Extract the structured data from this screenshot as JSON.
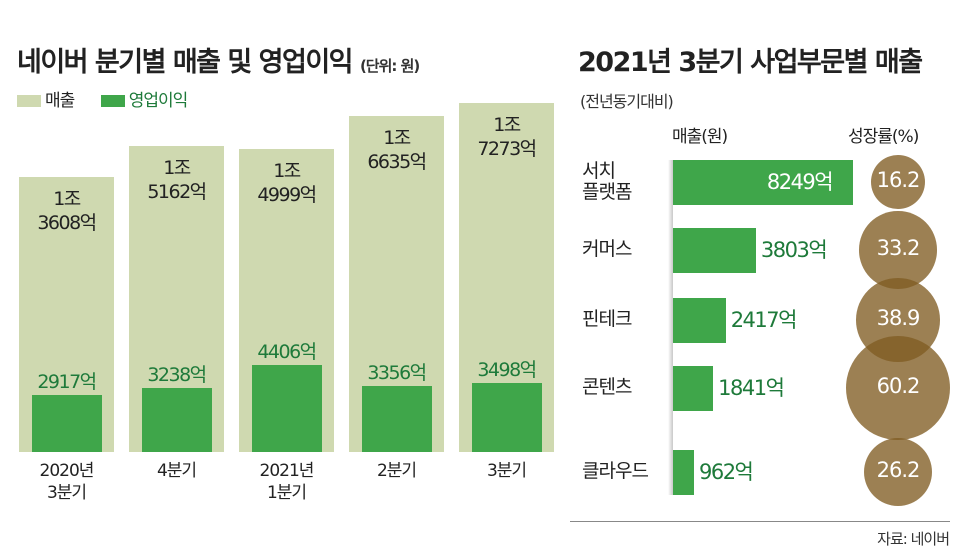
{
  "left": {
    "title": "네이버 분기별 매출 및 영업이익",
    "unit": "(단위: 원)",
    "legend": {
      "sales": "매출",
      "operating": "영업이익"
    }
  },
  "right": {
    "title": "2021년 3분기 사업부문별 매출",
    "subtitle": "(전년동기대비)",
    "col_sales": "매출(원)",
    "col_growth": "성장률(%)"
  },
  "source": "자료: 네이버",
  "colors": {
    "sales": "#cfd9b0",
    "operating": "#3fa64a",
    "growth": "#8c6a32"
  },
  "chart_data": [
    {
      "type": "bar",
      "title": "네이버 분기별 매출 및 영업이익",
      "unit": "억원",
      "categories": [
        "2020년\n3분기",
        "4분기",
        "2021년\n1분기",
        "2분기",
        "3분기"
      ],
      "series": [
        {
          "name": "매출",
          "values": [
            13608,
            15162,
            14999,
            16635,
            17273
          ],
          "labels": [
            "1조\n3608억",
            "1조\n5162억",
            "1조\n4999억",
            "1조\n6635억",
            "1조\n7273억"
          ]
        },
        {
          "name": "영업이익",
          "values": [
            2917,
            3238,
            4406,
            3356,
            3498
          ],
          "labels": [
            "2917억",
            "3238억",
            "4406억",
            "3356억",
            "3498억"
          ]
        }
      ]
    },
    {
      "type": "bar",
      "orientation": "horizontal",
      "title": "2021년 3분기 사업부문별 매출",
      "categories": [
        "서치\n플랫폼",
        "커머스",
        "핀테크",
        "콘텐츠",
        "클라우드"
      ],
      "series": [
        {
          "name": "매출(원)",
          "values": [
            8249,
            3803,
            2417,
            1841,
            962
          ],
          "labels": [
            "8249억",
            "3803억",
            "2417억",
            "1841억",
            "962억"
          ]
        },
        {
          "name": "성장률(%)",
          "values": [
            16.2,
            33.2,
            38.9,
            60.2,
            26.2
          ],
          "labels": [
            "16.2",
            "33.2",
            "38.9",
            "60.2",
            "26.2"
          ]
        }
      ]
    }
  ]
}
